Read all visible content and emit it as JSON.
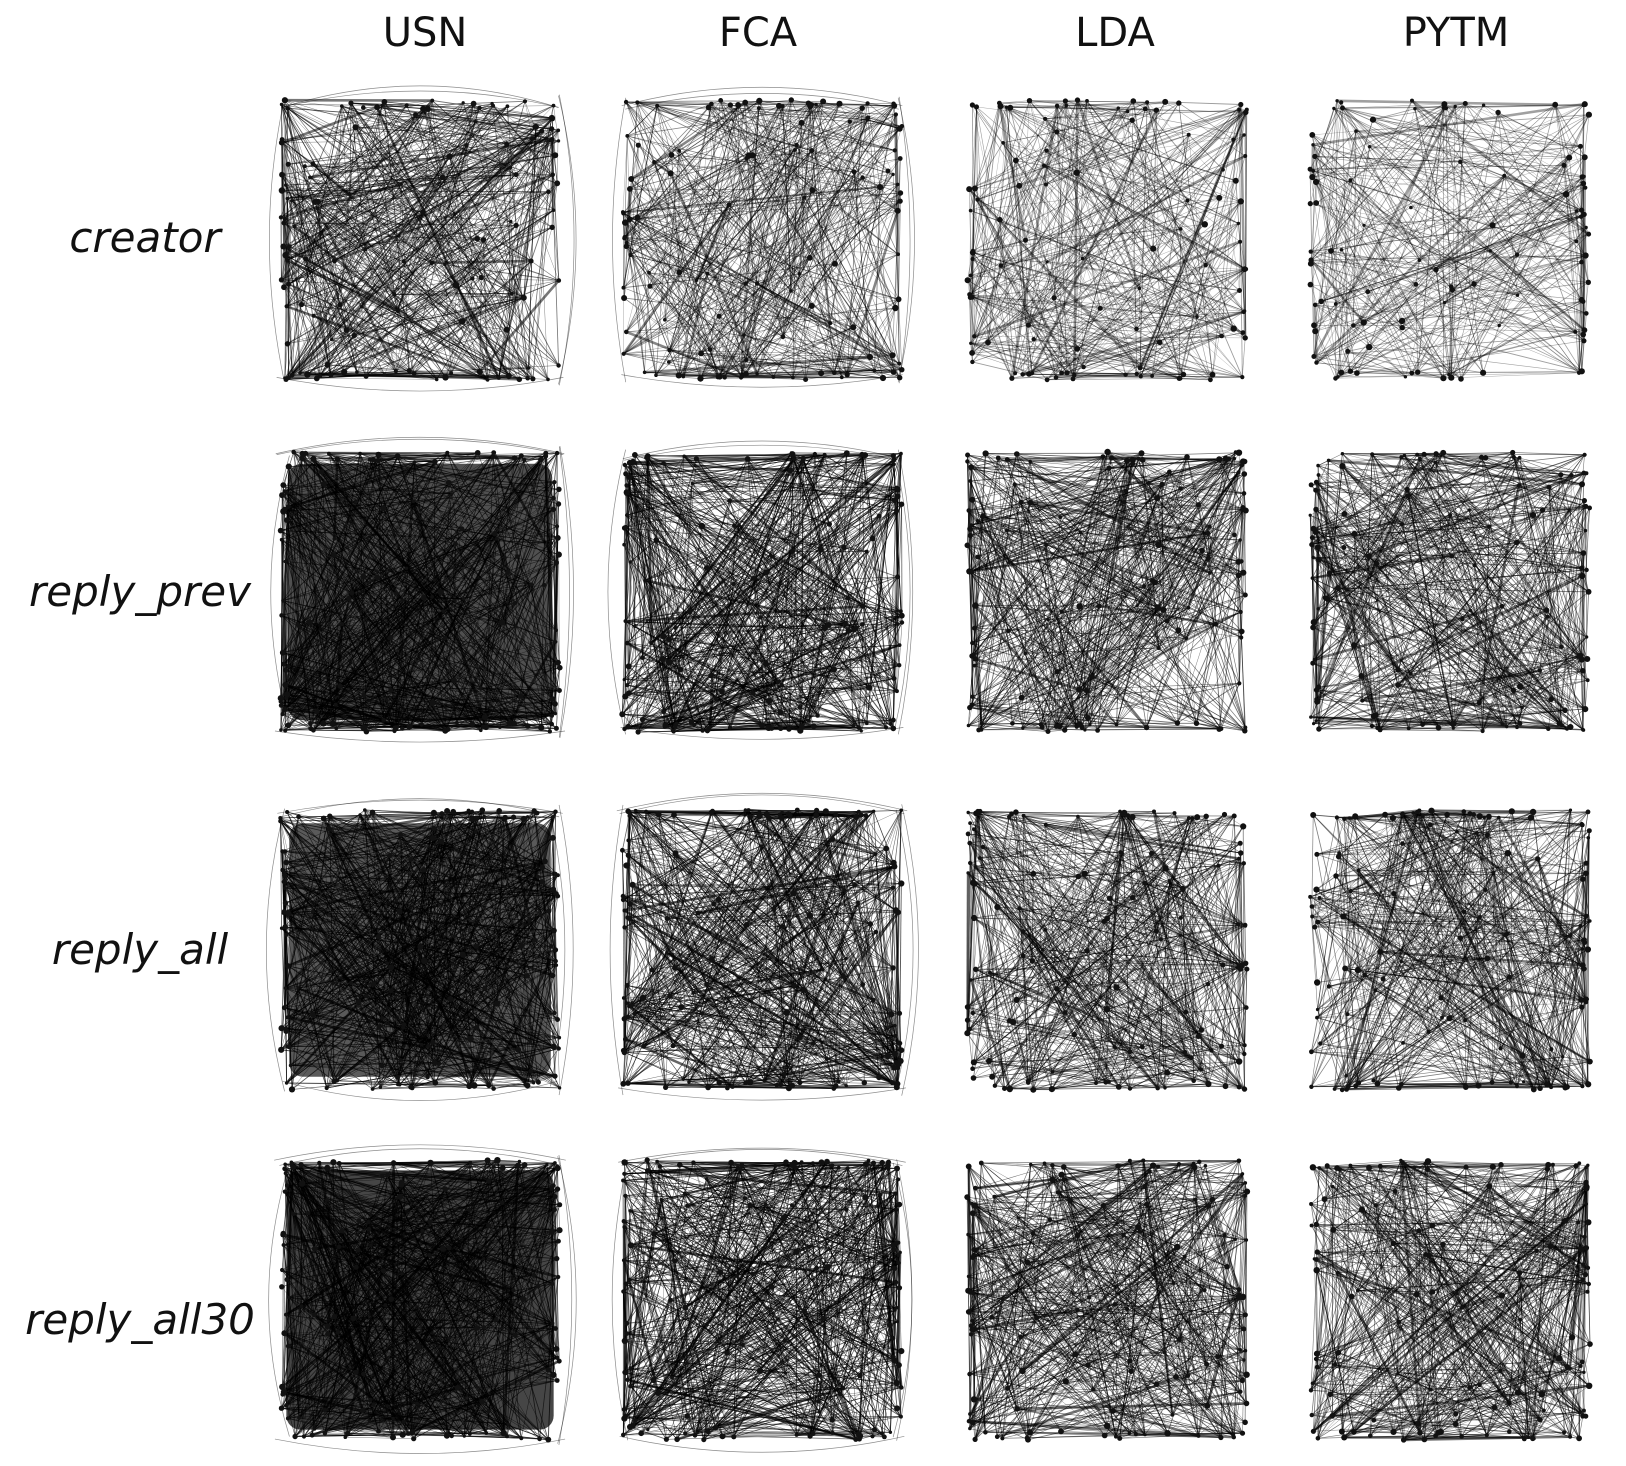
{
  "columns": [
    {
      "label": "USN",
      "density": 1.0,
      "dark_blob": 0.95,
      "curved_rim": true
    },
    {
      "label": "FCA",
      "density": 0.75,
      "dark_blob": 0.6,
      "curved_rim": true
    },
    {
      "label": "LDA",
      "density": 0.45,
      "dark_blob": 0.3,
      "curved_rim": false
    },
    {
      "label": "PYTM",
      "density": 0.35,
      "dark_blob": 0.2,
      "curved_rim": false
    }
  ],
  "rows": [
    {
      "label": "creator",
      "density": 0.35
    },
    {
      "label": "reply_prev",
      "density": 0.85
    },
    {
      "label": "reply_all",
      "density": 0.8
    },
    {
      "label": "reply_all30",
      "density": 0.9
    }
  ],
  "colors": {
    "background": "#ffffff",
    "edge": "#000000",
    "node": "#111111",
    "text": "#111111"
  }
}
